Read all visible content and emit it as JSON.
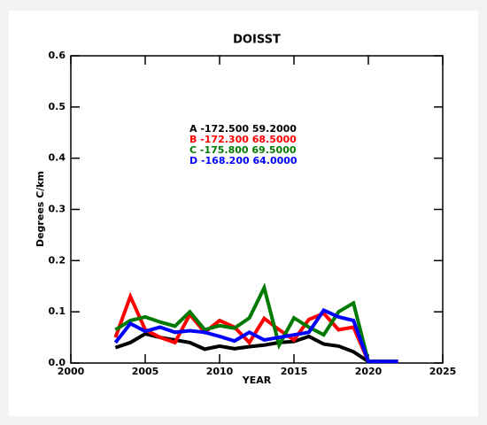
{
  "chart_data": {
    "type": "line",
    "title": "DOISST",
    "xlabel": "YEAR",
    "ylabel": "Degrees C/km",
    "x": [
      2003,
      2004,
      2005,
      2006,
      2007,
      2008,
      2009,
      2010,
      2011,
      2012,
      2013,
      2014,
      2015,
      2016,
      2017,
      2018,
      2019,
      2020,
      2021,
      2022
    ],
    "series": [
      {
        "name": "A -172.500 59.2000",
        "color": "#000000",
        "values": [
          0.03,
          0.04,
          0.057,
          0.05,
          0.045,
          0.04,
          0.027,
          0.033,
          0.028,
          0.032,
          0.035,
          0.04,
          0.042,
          0.052,
          0.037,
          0.033,
          0.022,
          0.003,
          0.003,
          0.003
        ]
      },
      {
        "name": "B -172.300 68.5000",
        "color": "#ff0000",
        "values": [
          0.05,
          0.13,
          0.065,
          0.05,
          0.04,
          0.095,
          0.06,
          0.083,
          0.07,
          0.04,
          0.087,
          0.065,
          0.045,
          0.085,
          0.097,
          0.065,
          0.07,
          0.003,
          0.003,
          0.003
        ]
      },
      {
        "name": "C -175.800 69.5000",
        "color": "#007a00",
        "values": [
          0.065,
          0.083,
          0.09,
          0.08,
          0.072,
          0.1,
          0.065,
          0.073,
          0.068,
          0.088,
          0.147,
          0.035,
          0.088,
          0.07,
          0.055,
          0.1,
          0.117,
          0.003,
          0.003,
          0.003
        ]
      },
      {
        "name": "D -168.200 64.0000",
        "color": "#0000ff",
        "values": [
          0.04,
          0.077,
          0.062,
          0.07,
          0.06,
          0.063,
          0.06,
          0.052,
          0.043,
          0.06,
          0.045,
          0.05,
          0.055,
          0.06,
          0.103,
          0.09,
          0.083,
          0.003,
          0.003,
          0.003
        ]
      }
    ],
    "xlim": [
      2000,
      2025
    ],
    "xticks": [
      2000,
      2005,
      2010,
      2015,
      2020,
      2025
    ],
    "ylim": [
      0,
      0.6
    ],
    "yticks": [
      {
        "value": 0,
        "label": "0.0"
      },
      0.1,
      0.2,
      0.3,
      0.4,
      0.5,
      0.6
    ]
  }
}
